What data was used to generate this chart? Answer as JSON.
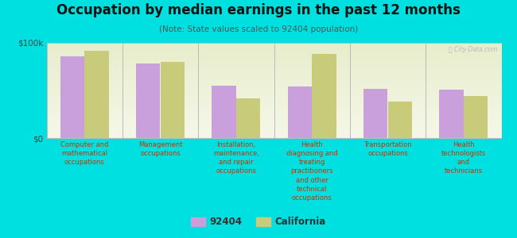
{
  "title": "Occupation by median earnings in the past 12 months",
  "subtitle": "(Note: State values scaled to 92404 population)",
  "background_color": "#00e0e0",
  "plot_bg_top": "#e8edcc",
  "plot_bg_bottom": "#f5f8e8",
  "categories": [
    "Computer and\nmathematical\noccupations",
    "Management\noccupations",
    "Installation,\nmaintenance,\nand repair\noccupations",
    "Health\ndiagnosing and\ntreating\npractitioners\nand other\ntechnical\noccupations",
    "Transportation\noccupations",
    "Health\ntechnologists\nand\ntechnicians"
  ],
  "values_92404": [
    86000,
    78000,
    55000,
    54000,
    52000,
    51000
  ],
  "values_california": [
    92000,
    80000,
    42000,
    88000,
    38000,
    44000
  ],
  "color_92404": "#c9a0dc",
  "color_california": "#c8cc7a",
  "ylim": [
    0,
    100000
  ],
  "yticks": [
    0,
    100000
  ],
  "ytick_labels": [
    "$0",
    "$100k"
  ],
  "legend_labels": [
    "92404",
    "California"
  ],
  "bar_width": 0.32,
  "watermark": "Ⓡ City-Data.com",
  "title_fontsize": 12,
  "subtitle_fontsize": 7.5,
  "xtick_fontsize": 6.0,
  "ytick_fontsize": 7.5,
  "legend_fontsize": 8.5,
  "xtick_color": "#cc3300"
}
